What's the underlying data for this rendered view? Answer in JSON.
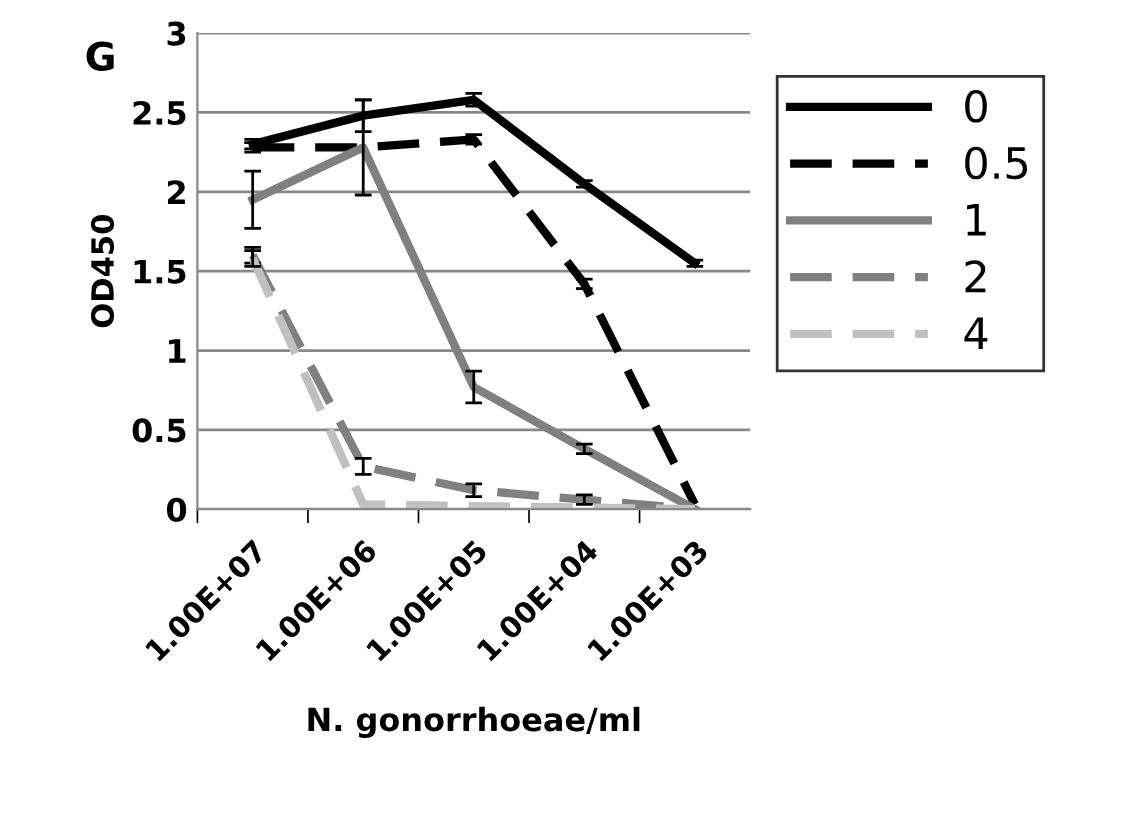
{
  "chart_data": {
    "type": "line",
    "title": "G",
    "xlabel": "N. gonorrhoeae/ml",
    "ylabel": "OD450",
    "categories": [
      "1.00E+07",
      "1.00E+06",
      "1.00E+05",
      "1.00E+04",
      "1.00E+03"
    ],
    "ylim": [
      0,
      3
    ],
    "yticks": [
      0,
      0.5,
      1,
      1.5,
      2,
      2.5,
      3
    ],
    "grid": "y",
    "legend": "right",
    "marker": "none",
    "series": [
      {
        "name": "0",
        "color": "#000000",
        "line_style": "solid",
        "values": [
          2.3,
          2.48,
          2.58,
          2.05,
          1.55
        ],
        "errors": [
          0.03,
          0.1,
          0.04,
          0.02,
          0.02
        ]
      },
      {
        "name": "0.5",
        "color": "#000000",
        "line_style": "dashed",
        "values": [
          2.28,
          2.28,
          2.33,
          1.42,
          0.03
        ],
        "errors": [
          0.03,
          null,
          0.03,
          0.03,
          null
        ]
      },
      {
        "name": "1",
        "color": "#808080",
        "line_style": "solid",
        "values": [
          1.95,
          2.28,
          0.77,
          0.38,
          0.0
        ],
        "errors": [
          0.18,
          0.3,
          0.1,
          0.03,
          null
        ]
      },
      {
        "name": "2",
        "color": "#808080",
        "line_style": "dashed",
        "values": [
          1.6,
          0.27,
          0.12,
          0.06,
          0.0
        ],
        "errors": [
          0.05,
          0.05,
          0.04,
          0.03,
          null
        ]
      },
      {
        "name": "4",
        "color": "#c0c0c0",
        "line_style": "dashed",
        "values": [
          1.58,
          0.03,
          0.02,
          0.01,
          0.0
        ],
        "errors": [
          0.05,
          null,
          null,
          null,
          null
        ]
      }
    ]
  }
}
